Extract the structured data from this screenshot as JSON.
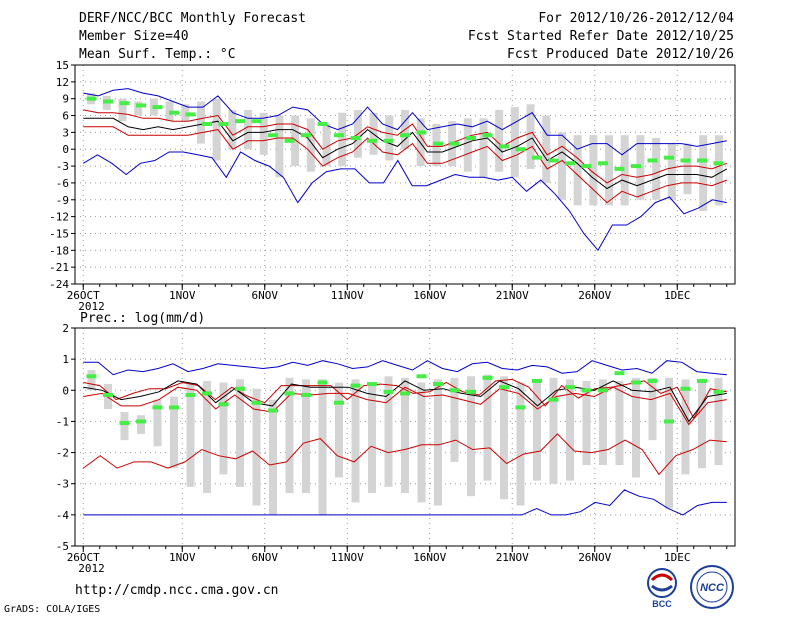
{
  "header": {
    "title": "DERF/NCC/BCC Monthly Forecast",
    "member_size": "Member Size=40",
    "variable": "Mean Surf. Temp.: °C",
    "forecast_range": "For 2012/10/26-2012/12/04",
    "fcst_started": "Fcst Started Refer Date 2012/10/25",
    "fcst_produced": "Fcst Produced Date 2012/10/26"
  },
  "footer": {
    "url": "http://cmdp.ncc.cma.gov.cn",
    "grads": "GrADS: COLA/IGES",
    "logo_bcc": "BCC",
    "logo_ncc": "NCC"
  },
  "colors": {
    "max_min": "#0000cc",
    "percentile": "#cc0000",
    "mean": "#000000",
    "obs_bar": "#d4d4d4",
    "green": "#44ee44",
    "grid": "#999999"
  },
  "chart_data": [
    {
      "type": "line",
      "title": "Mean Surf. Temp.: °C",
      "x_tick_labels": [
        "26OCT",
        "1NOV",
        "6NOV",
        "11NOV",
        "16NOV",
        "21NOV",
        "26NOV",
        "1DEC"
      ],
      "x_tick_days": [
        0,
        6,
        11,
        16,
        21,
        26,
        31,
        36
      ],
      "x_sublabel": "2012",
      "xlim": [
        -0.5,
        39.5
      ],
      "ylim": [
        -24,
        15
      ],
      "y_ticks": [
        15,
        12,
        9,
        6,
        3,
        0,
        -3,
        -6,
        -9,
        -12,
        -15,
        -18,
        -21,
        -24
      ],
      "series": [
        {
          "name": "max",
          "values": [
            10,
            9.5,
            10.5,
            10.8,
            10,
            9.5,
            8.5,
            7.5,
            7.5,
            9.5,
            6.5,
            5.5,
            5.5,
            6,
            7.5,
            7,
            4.5,
            3.5,
            4.5,
            7.5,
            4.5,
            3.5,
            6.5,
            3.5,
            4,
            4.5,
            4,
            5,
            3.5,
            5,
            6.5,
            2.5,
            2.5,
            0,
            1,
            1,
            -1,
            1,
            1,
            1,
            1,
            0.5,
            1,
            1.5
          ]
        },
        {
          "name": "p90",
          "values": [
            7,
            6.5,
            6.5,
            6.2,
            5.5,
            5.5,
            5,
            5,
            5.5,
            6,
            2.5,
            4,
            4,
            4.5,
            4.5,
            3.5,
            0,
            1.5,
            2,
            4,
            3,
            2.5,
            4.5,
            0.5,
            0.5,
            1.5,
            2.5,
            3,
            0.5,
            2,
            3,
            -1,
            0.5,
            -1.5,
            -4,
            -6,
            -4.5,
            -5,
            -4.5,
            -3.5,
            -3,
            -3,
            -3.5,
            -2.5
          ]
        },
        {
          "name": "mean",
          "values": [
            5.5,
            5.5,
            5.5,
            4,
            3.5,
            4,
            3.5,
            4,
            4.5,
            5,
            1.5,
            3,
            3,
            3.5,
            3.5,
            2,
            -1.5,
            0,
            1,
            3.5,
            1.5,
            0.5,
            3,
            -0.5,
            -0.5,
            0.5,
            1.5,
            2,
            -0.5,
            0.5,
            2,
            -2,
            -0.5,
            -2.5,
            -5,
            -7,
            -5.5,
            -6.5,
            -5.5,
            -4.5,
            -4.5,
            -4.5,
            -5,
            -3.5
          ]
        },
        {
          "name": "p10",
          "values": [
            4,
            4,
            4,
            2.5,
            2.5,
            2.5,
            2.5,
            2.5,
            3,
            3.5,
            0,
            1.5,
            1.5,
            2,
            2,
            0,
            -3,
            -1.5,
            -0.5,
            2,
            -0.5,
            -1,
            1,
            -2.5,
            -2.5,
            -1.5,
            -0.5,
            0.5,
            -2,
            -1,
            0.5,
            -3.5,
            -2,
            -4.5,
            -7,
            -9.5,
            -7.5,
            -8.5,
            -7.5,
            -6.5,
            -6,
            -6,
            -6.5,
            -5.5
          ]
        },
        {
          "name": "min",
          "values": [
            -2.5,
            -1,
            -2.5,
            -4.5,
            -2.5,
            -2,
            -0.5,
            -0.5,
            -1,
            -1.5,
            -5,
            -0.5,
            -2,
            -3,
            -5,
            -9.5,
            -6,
            -4,
            -3.5,
            -3.5,
            -6,
            -6,
            -2,
            -6.5,
            -6.5,
            -5.5,
            -4.5,
            -5,
            -5,
            -5.5,
            -5,
            -7.5,
            -5.5,
            -8,
            -11,
            -15,
            -18,
            -13.5,
            -13.5,
            -12,
            -9.5,
            -8.5,
            -11.5,
            -10.5,
            -9,
            -9.5
          ]
        },
        {
          "name": "green_markers",
          "values": [
            9,
            8.5,
            8.2,
            7.8,
            7.5,
            6.5,
            6.2,
            4.5,
            4.5,
            5,
            5,
            2.5,
            1.5,
            2.5,
            4.5,
            2.5,
            2,
            1.5,
            1.5,
            2.5,
            3,
            1,
            1,
            2,
            2.5,
            0.5,
            0,
            -1.5,
            -2,
            -2.5,
            -3,
            -2.5,
            -3.5,
            -3,
            -2,
            -1.5,
            -2,
            -2,
            -2.5
          ]
        },
        {
          "name": "bar_top",
          "values": [
            10,
            9.5,
            9,
            8.5,
            9,
            8.5,
            8,
            8.5,
            9,
            7,
            7,
            6.5,
            6,
            6,
            5.5,
            4.5,
            6.5,
            7,
            6.5,
            6,
            7,
            5.5,
            4.5,
            5,
            5.5,
            5.5,
            7,
            7.5,
            8,
            6,
            3,
            2.5,
            2.5,
            2.5,
            2.5,
            2.5,
            2,
            1,
            1,
            2.5,
            2.5,
            2.5,
            2.5
          ]
        },
        {
          "name": "bar_bottom",
          "values": [
            8,
            7,
            5,
            6,
            6,
            5,
            5,
            1,
            -2,
            0,
            0,
            -1,
            -5,
            -3,
            -4,
            -3,
            -3,
            -1.5,
            -1,
            -2,
            0,
            -3,
            -3,
            -3,
            -4,
            -5,
            -4,
            -5,
            -3.5,
            -6,
            -9,
            -10,
            -10,
            -10,
            -10,
            -9,
            -9,
            -9,
            -8,
            -11,
            -10
          ]
        }
      ]
    },
    {
      "type": "line",
      "title": "Prec.: log(mm/d)",
      "x_tick_labels": [
        "26OCT",
        "1NOV",
        "6NOV",
        "11NOV",
        "16NOV",
        "21NOV",
        "26NOV",
        "1DEC"
      ],
      "x_tick_days": [
        0,
        6,
        11,
        16,
        21,
        26,
        31,
        36
      ],
      "x_sublabel": "2012",
      "xlim": [
        -0.5,
        39.5
      ],
      "ylim": [
        -5,
        2
      ],
      "y_ticks": [
        2,
        1,
        0,
        -1,
        -2,
        -3,
        -4,
        -5
      ],
      "series": [
        {
          "name": "max",
          "values": [
            0.9,
            0.9,
            0.5,
            0.65,
            0.6,
            0.7,
            0.85,
            0.6,
            0.7,
            0.85,
            0.8,
            0.75,
            0.7,
            0.75,
            0.9,
            0.8,
            0.95,
            0.85,
            0.7,
            0.75,
            0.95,
            0.8,
            0.65,
            0.95,
            0.7,
            0.6,
            0.85,
            0.9,
            0.7,
            0.65,
            0.8,
            0.75,
            0.55,
            0.6,
            0.95,
            0.8,
            0.65,
            0.7,
            0.55,
            0.95,
            0.9,
            0.6,
            0.55,
            0.5
          ]
        },
        {
          "name": "p90",
          "values": [
            0.25,
            0.15,
            -0.3,
            -0.1,
            0.05,
            0.05,
            0.25,
            0.15,
            -0.3,
            0.1,
            -0.2,
            -0.4,
            0.15,
            0.15,
            0.15,
            0.15,
            -0.3,
            0.15,
            0.2,
            0.15,
            -0.1,
            -0.05,
            0.25,
            -0.05,
            -0.15,
            0.3,
            0.35,
            0.1,
            -0.5,
            0.15,
            -0.25,
            0.05,
            0.1,
            0.2,
            0.3,
            -0.1,
            0.1,
            -0.9,
            0.05,
            -0.05
          ]
        },
        {
          "name": "mean",
          "values": [
            0.1,
            0,
            -0.3,
            -0.2,
            -0.05,
            0.3,
            0.2,
            -0.4,
            0.05,
            -0.4,
            -0.5,
            0.2,
            0.1,
            0.1,
            0.1,
            -0.1,
            -0.2,
            0.3,
            0,
            0.05,
            -0.1,
            -0.2,
            0.3,
            0.05,
            -0.5,
            0,
            0.1,
            0,
            0.3,
            0,
            -0.05,
            0.1,
            -1,
            -0.2,
            -0.1
          ]
        },
        {
          "name": "p10",
          "values": [
            -0.2,
            -0.1,
            -0.5,
            -0.5,
            -0.3,
            0.1,
            0,
            -0.6,
            -0.15,
            -0.6,
            -0.7,
            -0.1,
            -0.15,
            -0.1,
            -0.1,
            -0.3,
            -0.4,
            0.1,
            -0.2,
            -0.15,
            -0.3,
            -0.45,
            0.05,
            -0.1,
            -0.6,
            -0.2,
            -0.1,
            -0.2,
            0.1,
            -0.2,
            -0.3,
            -0.1,
            -1.1,
            -0.4,
            -0.3
          ]
        },
        {
          "name": "p25",
          "values": [
            -2.5,
            -2.1,
            -2.5,
            -2.3,
            -2.3,
            -2.5,
            -2.3,
            -1.9,
            -2.1,
            -2.2,
            -1.95,
            -2.4,
            -2.3,
            -1.7,
            -1.55,
            -2.1,
            -2.3,
            -1.8,
            -2.0,
            -1.9,
            -1.75,
            -1.75,
            -1.6,
            -1.9,
            -1.85,
            -2.35,
            -2.05,
            -1.95,
            -1.4,
            -1.95,
            -2.0,
            -1.9,
            -1.6,
            -1.9,
            -2.7,
            -2.1,
            -1.9,
            -1.6,
            -1.65
          ]
        },
        {
          "name": "min",
          "values": [
            -4,
            -4,
            -4,
            -4,
            -4,
            -4,
            -4,
            -4,
            -4,
            -4,
            -4,
            -4,
            -4,
            -4,
            -4,
            -4,
            -4,
            -4,
            -4,
            -4,
            -4,
            -4,
            -4,
            -4,
            -4,
            -4,
            -4,
            -4,
            -4,
            -4,
            -4,
            -3.8,
            -4,
            -4,
            -3.9,
            -3.6,
            -3.7,
            -3.2,
            -3.4,
            -3.5,
            -3.8,
            -4,
            -3.7,
            -3.6,
            -3.6
          ]
        },
        {
          "name": "green_markers",
          "values": [
            0.45,
            -0.15,
            -1.05,
            -1,
            -0.55,
            -0.55,
            -0.15,
            -0.1,
            -0.45,
            0.05,
            -0.4,
            -0.65,
            -0.1,
            -0.15,
            0.25,
            -0.4,
            0.15,
            0.2,
            -0.05,
            -0.1,
            0.45,
            0.2,
            0,
            -0.05,
            0.4,
            0.1,
            -0.55,
            0.3,
            -0.3,
            0.1,
            0,
            0,
            0.55,
            0.25,
            0.3,
            -1,
            0.05,
            0.3,
            -0.05
          ]
        },
        {
          "name": "bar_top",
          "values": [
            0.65,
            0.2,
            -0.7,
            -0.8,
            -0.3,
            -0.2,
            0.2,
            0.3,
            0.25,
            0.35,
            0.05,
            -0.3,
            0.4,
            0.35,
            0.35,
            0.25,
            0.35,
            0.25,
            0.45,
            0.4,
            0.25,
            0.35,
            0.4,
            0.45,
            0.5,
            0.45,
            0.25,
            0.35,
            0.4,
            0.35,
            0.3,
            0.35,
            0.3,
            0.4,
            0.4,
            0.4,
            0.35,
            0.3,
            0.4
          ]
        },
        {
          "name": "bar_bottom",
          "values": [
            0,
            -0.6,
            -1.6,
            -1.4,
            -1.8,
            -2.5,
            -3.1,
            -3.3,
            -2.7,
            -3.1,
            -3.7,
            -4,
            -3.3,
            -3.3,
            -4,
            -2.8,
            -3.6,
            -3.3,
            -3.1,
            -3.3,
            -3.6,
            -3.7,
            -2.3,
            -3.4,
            -2.9,
            -3.5,
            -3.7,
            -2.9,
            -3,
            -2.9,
            -2.4,
            -2.4,
            -2.4,
            -2.8,
            -1.6,
            -3.8,
            -2.7,
            -2.5,
            -2.4
          ]
        }
      ]
    }
  ]
}
